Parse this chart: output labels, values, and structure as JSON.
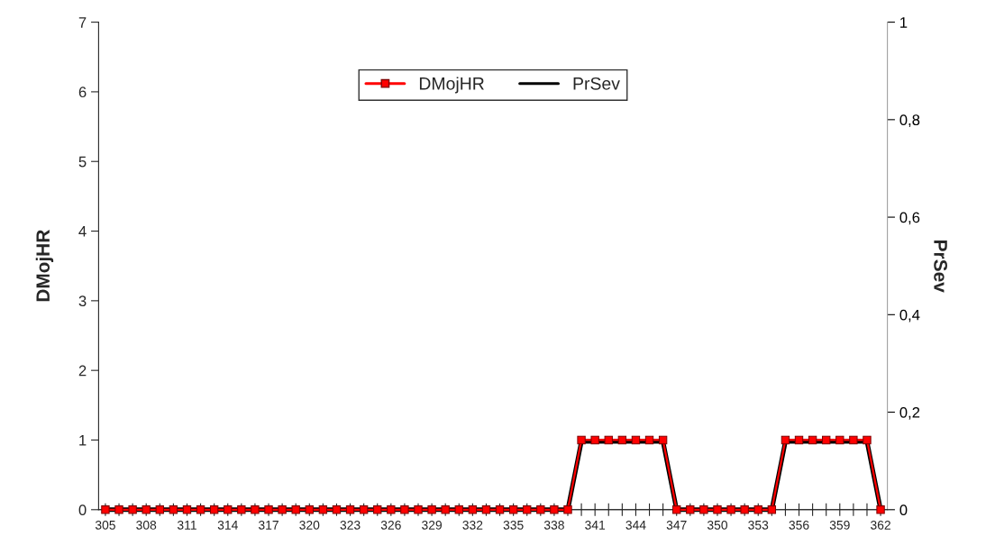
{
  "chart_data": {
    "type": "line",
    "categories": [
      "305",
      null,
      null,
      "308",
      null,
      null,
      "311",
      null,
      null,
      "314",
      null,
      null,
      "317",
      null,
      null,
      "320",
      null,
      null,
      "323",
      null,
      null,
      "326",
      null,
      null,
      "329",
      null,
      null,
      "332",
      null,
      null,
      "335",
      null,
      null,
      "338",
      null,
      null,
      "341",
      null,
      null,
      "344",
      null,
      null,
      "347",
      null,
      null,
      "350",
      null,
      null,
      "353",
      null,
      null,
      "356",
      null,
      null,
      "359",
      null,
      null,
      "362"
    ],
    "series": [
      {
        "name": "DMojHR",
        "color": "#ff0000",
        "marker": "square",
        "values": [
          0,
          0,
          0,
          0,
          0,
          0,
          0,
          0,
          0,
          0,
          0,
          0,
          0,
          0,
          0,
          0,
          0,
          0,
          0,
          0,
          0,
          0,
          0,
          0,
          0,
          0,
          0,
          0,
          0,
          0,
          0,
          0,
          0,
          0,
          0,
          1,
          1,
          1,
          1,
          1,
          1,
          1,
          0,
          0,
          0,
          0,
          0,
          0,
          0,
          0,
          1,
          1,
          1,
          1,
          1,
          1,
          1,
          0
        ]
      },
      {
        "name": "PrSev",
        "color": "#000000",
        "axis": "y2",
        "marker": "none",
        "values": [
          0,
          0,
          0,
          0,
          0,
          0,
          0,
          0,
          0,
          0,
          0,
          0,
          0,
          0,
          0,
          0,
          0,
          0,
          0,
          0,
          0,
          0,
          0,
          0,
          0,
          0,
          0,
          0,
          0,
          0,
          0,
          0,
          0,
          0,
          0,
          0.14,
          0.14,
          0.14,
          0.14,
          0.14,
          0.14,
          0.14,
          0,
          0,
          0,
          0,
          0,
          0,
          0,
          0,
          0.14,
          0.14,
          0.14,
          0.14,
          0.14,
          0.14,
          0.14,
          0
        ]
      }
    ],
    "ylabel": "DMojHR",
    "y2label": "PrSev",
    "ylim": [
      0,
      7
    ],
    "yticks": [
      0,
      1,
      2,
      3,
      4,
      5,
      6,
      7
    ],
    "y2lim": [
      0,
      1
    ],
    "y2ticks": [
      {
        "value": 0,
        "label": "0"
      },
      {
        "value": 0.2,
        "label": "0,2"
      },
      {
        "value": 0.4,
        "label": "0,4"
      },
      {
        "value": 0.6,
        "label": "0,6"
      },
      {
        "value": 0.8,
        "label": "0,8"
      },
      {
        "value": 1,
        "label": "1"
      }
    ],
    "grid": false,
    "legend": "top"
  }
}
